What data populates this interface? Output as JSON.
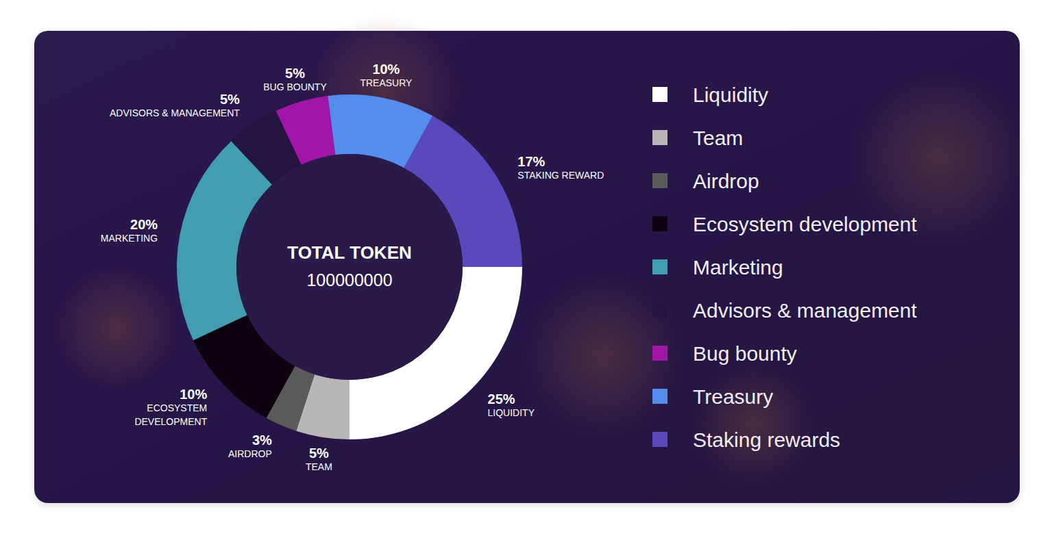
{
  "chart_data": {
    "type": "donut",
    "title": "TOTAL TOKEN",
    "total": 100000000,
    "categories": [
      "Liquidity",
      "Team",
      "Airdrop",
      "Ecosystem development",
      "Marketing",
      "Advisors & management",
      "Bug bounty",
      "Treasury",
      "Staking rewards"
    ],
    "slice_labels": [
      "LIQUIDITY",
      "TEAM",
      "AIRDROP",
      "ECOSYSTEM DEVELOPMENT",
      "MARKETING",
      "ADVISORS & MANAGEMENT",
      "BUG BOUNTY",
      "TREASURY",
      "STAKING REWARD"
    ],
    "values": [
      25,
      5,
      3,
      10,
      20,
      5,
      5,
      10,
      17
    ],
    "value_labels": [
      "25%",
      "5%",
      "3%",
      "10%",
      "20%",
      "5%",
      "5%",
      "10%",
      "17%"
    ],
    "colors": [
      "#ffffff",
      "#b8b6b9",
      "#5a5a5a",
      "#0f0311",
      "#419db0",
      "#241440",
      "#a116a8",
      "#558ded",
      "#5a48bd"
    ],
    "data_labels": true,
    "legend": "right"
  }
}
